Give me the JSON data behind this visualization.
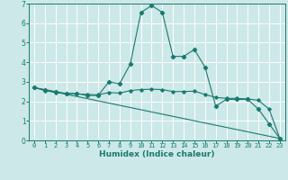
{
  "xlabel": "Humidex (Indice chaleur)",
  "background_color": "#cce8e8",
  "grid_color": "#ffffff",
  "line_color": "#1a7a6e",
  "xlim": [
    -0.5,
    23.5
  ],
  "ylim": [
    0,
    7
  ],
  "xticks": [
    0,
    1,
    2,
    3,
    4,
    5,
    6,
    7,
    8,
    9,
    10,
    11,
    12,
    13,
    14,
    15,
    16,
    17,
    18,
    19,
    20,
    21,
    22,
    23
  ],
  "yticks": [
    0,
    1,
    2,
    3,
    4,
    5,
    6,
    7
  ],
  "series1_x": [
    0,
    1,
    2,
    3,
    4,
    5,
    6,
    7,
    8,
    9,
    10,
    11,
    12,
    13,
    14,
    15,
    16,
    17,
    18,
    19,
    20,
    21,
    22,
    23
  ],
  "series1_y": [
    2.7,
    2.6,
    2.5,
    2.4,
    2.4,
    2.3,
    2.3,
    3.0,
    2.9,
    3.9,
    6.55,
    6.9,
    6.55,
    4.3,
    4.3,
    4.65,
    3.75,
    1.75,
    2.1,
    2.1,
    2.1,
    1.6,
    0.85,
    0.1
  ],
  "series2_x": [
    0,
    1,
    2,
    3,
    4,
    5,
    6,
    7,
    8,
    9,
    10,
    11,
    12,
    13,
    14,
    15,
    16,
    17,
    18,
    19,
    20,
    21,
    22,
    23
  ],
  "series2_y": [
    2.7,
    2.55,
    2.45,
    2.4,
    2.38,
    2.35,
    2.33,
    2.45,
    2.42,
    2.55,
    2.6,
    2.62,
    2.6,
    2.5,
    2.5,
    2.52,
    2.35,
    2.2,
    2.15,
    2.15,
    2.12,
    2.05,
    1.6,
    0.1
  ],
  "series3_x": [
    0,
    23
  ],
  "series3_y": [
    2.7,
    0.1
  ]
}
